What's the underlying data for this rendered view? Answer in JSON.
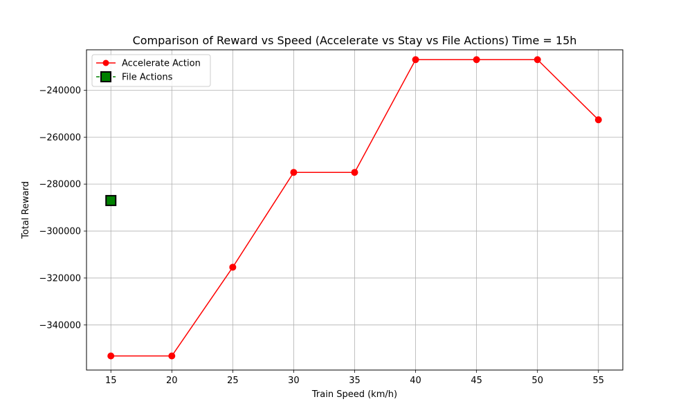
{
  "chart_data": {
    "type": "line",
    "title": "Comparison of Reward vs Speed (Accelerate vs Stay vs File Actions) Time = 15h",
    "xlabel": "Train Speed (km/h)",
    "ylabel": "Total Reward",
    "xlim": [
      13,
      57
    ],
    "ylim": [
      -359200,
      -222800
    ],
    "xticks": [
      15,
      20,
      25,
      30,
      35,
      40,
      45,
      50,
      55
    ],
    "yticks": [
      -340000,
      -320000,
      -300000,
      -280000,
      -260000,
      -240000
    ],
    "grid": true,
    "legend_position": "top-left",
    "series": [
      {
        "name": "Accelerate Action",
        "color": "#ff0000",
        "marker": "circle",
        "linestyle": "solid",
        "x": [
          15,
          20,
          25,
          30,
          35,
          40,
          45,
          50,
          55
        ],
        "y": [
          -353200,
          -353200,
          -315400,
          -275000,
          -275000,
          -227000,
          -227000,
          -227000,
          -252600
        ]
      },
      {
        "name": "File Actions",
        "color": "#008000",
        "marker": "square",
        "linestyle": "dashed",
        "x": [
          15
        ],
        "y": [
          -287000
        ]
      }
    ]
  }
}
